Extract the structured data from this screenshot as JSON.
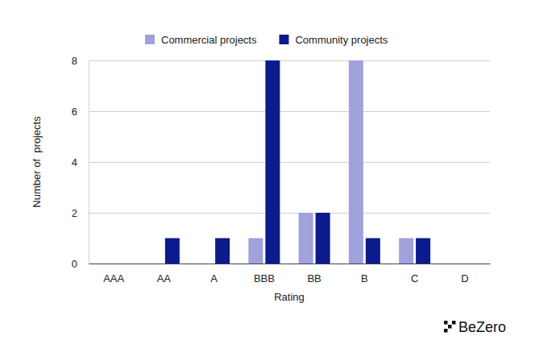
{
  "chart_data": {
    "type": "bar",
    "categories": [
      "AAA",
      "AA",
      "A",
      "BBB",
      "BB",
      "B",
      "C",
      "D"
    ],
    "series": [
      {
        "name": "Commercial projects",
        "color": "#a0a2dc",
        "values": [
          0,
          0,
          0,
          1,
          2,
          8,
          1,
          0
        ]
      },
      {
        "name": "Community projects",
        "color": "#0b1a8c",
        "values": [
          0,
          1,
          1,
          8,
          2,
          1,
          1,
          0
        ]
      }
    ],
    "x_label": "Rating",
    "y_label": "Number of  projects",
    "ylim": [
      0,
      8
    ],
    "yticks": [
      0,
      2,
      4,
      6,
      8
    ],
    "grid": true,
    "legend": "top",
    "annotations": [
      "BeZero"
    ]
  }
}
